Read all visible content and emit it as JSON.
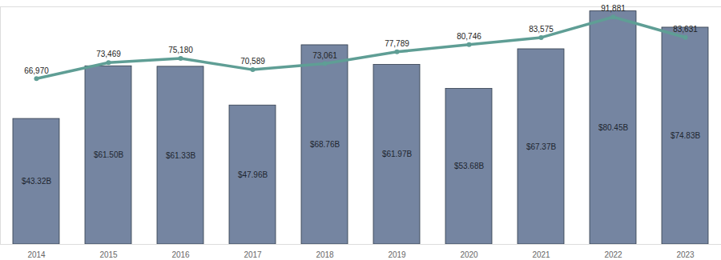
{
  "chart_data": {
    "type": "bar",
    "categories": [
      "2014",
      "2015",
      "2016",
      "2017",
      "2018",
      "2019",
      "2020",
      "2021",
      "2022",
      "2023"
    ],
    "series": [
      {
        "type": "bar",
        "color": "#7585a1",
        "values": [
          43.32,
          61.5,
          61.33,
          47.96,
          68.76,
          61.97,
          53.68,
          67.37,
          80.45,
          74.83
        ],
        "value_labels": [
          "$43.32B",
          "$61.50B",
          "$61.33B",
          "$47.96B",
          "$68.76B",
          "$61.97B",
          "$53.68B",
          "$67.37B",
          "$80.45B",
          "$74.83B"
        ]
      },
      {
        "type": "line",
        "axis": "y2",
        "color": "#5f9e95",
        "marker": "circle",
        "values": [
          66970,
          73469,
          75180,
          70589,
          73061,
          77789,
          80746,
          83575,
          91881,
          83631
        ],
        "value_labels": [
          "66,970",
          "73,469",
          "75,180",
          "70,589",
          "73,061",
          "77,789",
          "80,746",
          "83,575",
          "91,881",
          "83,631"
        ]
      }
    ],
    "ylim": [
      0,
      82
    ],
    "yticks": [],
    "y2lim": [
      0,
      96000
    ],
    "y2ticks": [],
    "data_labels": true,
    "tick_labels": "x",
    "grid": false
  }
}
